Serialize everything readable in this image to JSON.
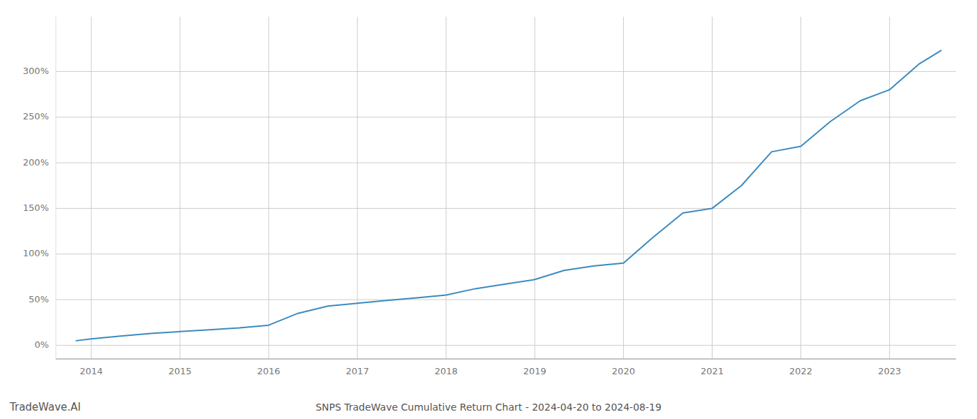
{
  "chart_data": {
    "type": "line",
    "title": "SNPS TradeWave Cumulative Return Chart - 2024-04-20 to 2024-08-19",
    "annotations": [
      "TradeWave.AI"
    ],
    "x": [
      2013.83,
      2014.0,
      2014.33,
      2014.67,
      2015.0,
      2015.33,
      2015.67,
      2016.0,
      2016.33,
      2016.67,
      2017.0,
      2017.33,
      2017.67,
      2018.0,
      2018.33,
      2018.67,
      2019.0,
      2019.33,
      2019.67,
      2020.0,
      2020.33,
      2020.67,
      2021.0,
      2021.33,
      2021.67,
      2022.0,
      2022.33,
      2022.67,
      2023.0,
      2023.33,
      2023.58
    ],
    "values": [
      5,
      7,
      10,
      13,
      15,
      17,
      19,
      22,
      35,
      43,
      46,
      49,
      52,
      55,
      62,
      67,
      72,
      82,
      87,
      90,
      118,
      145,
      150,
      175,
      212,
      218,
      245,
      268,
      280,
      308,
      323
    ],
    "color": "#3a8abf",
    "xlim": [
      2013.6,
      2023.75
    ],
    "xticks": [
      2014,
      2015,
      2016,
      2017,
      2018,
      2019,
      2020,
      2021,
      2022,
      2023
    ],
    "ylim": [
      -15,
      360
    ],
    "yticks": [
      {
        "value": 0,
        "label": "0%"
      },
      {
        "value": 50,
        "label": "50%"
      },
      {
        "value": 100,
        "label": "100%"
      },
      {
        "value": 150,
        "label": "150%"
      },
      {
        "value": 200,
        "label": "200%"
      },
      {
        "value": 250,
        "label": "250%"
      },
      {
        "value": 300,
        "label": "300%"
      }
    ],
    "grid": true
  }
}
